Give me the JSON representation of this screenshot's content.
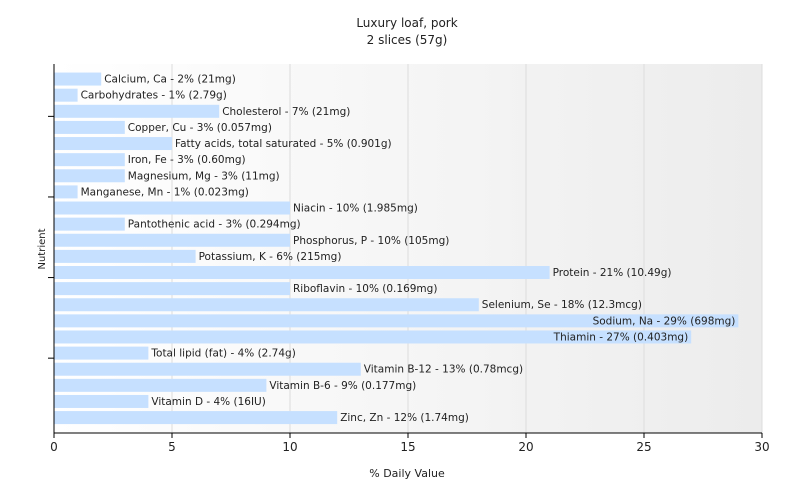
{
  "chart_data": {
    "type": "bar",
    "orientation": "horizontal",
    "title": "Luxury loaf, pork",
    "subtitle": "2 slices (57g)",
    "xlabel": "% Daily Value",
    "ylabel": "Nutrient",
    "xlim": [
      0,
      30
    ],
    "xticks": [
      "0",
      "5",
      "10",
      "15",
      "20",
      "25",
      "30"
    ],
    "grid": "vertical",
    "bar_color": "#c6e0ff",
    "categories": [
      "Calcium, Ca",
      "Carbohydrates",
      "Cholesterol",
      "Copper, Cu",
      "Fatty acids, total saturated",
      "Iron, Fe",
      "Magnesium, Mg",
      "Manganese, Mn",
      "Niacin",
      "Pantothenic acid",
      "Phosphorus, P",
      "Potassium, K",
      "Protein",
      "Riboflavin",
      "Selenium, Se",
      "Sodium, Na",
      "Thiamin",
      "Total lipid (fat)",
      "Vitamin B-12",
      "Vitamin B-6",
      "Vitamin D",
      "Zinc, Zn"
    ],
    "values": [
      2,
      1,
      7,
      3,
      5,
      3,
      3,
      1,
      10,
      3,
      10,
      6,
      21,
      10,
      18,
      29,
      27,
      4,
      13,
      9,
      4,
      12
    ],
    "labels": [
      "Calcium, Ca - 2% (21mg)",
      "Carbohydrates - 1% (2.79g)",
      "Cholesterol - 7% (21mg)",
      "Copper, Cu - 3% (0.057mg)",
      "Fatty acids, total saturated - 5% (0.901g)",
      "Iron, Fe - 3% (0.60mg)",
      "Magnesium, Mg - 3% (11mg)",
      "Manganese, Mn - 1% (0.023mg)",
      "Niacin - 10% (1.985mg)",
      "Pantothenic acid - 3% (0.294mg)",
      "Phosphorus, P - 10% (105mg)",
      "Potassium, K - 6% (215mg)",
      "Protein - 21% (10.49g)",
      "Riboflavin - 10% (0.169mg)",
      "Selenium, Se - 18% (12.3mcg)",
      "Sodium, Na - 29% (698mg)",
      "Thiamin - 27% (0.403mg)",
      "Total lipid (fat) - 4% (2.74g)",
      "Vitamin B-12 - 13% (0.78mcg)",
      "Vitamin B-6 - 9% (0.177mg)",
      "Vitamin D - 4% (16IU)",
      "Zinc, Zn - 12% (1.74mg)"
    ]
  }
}
